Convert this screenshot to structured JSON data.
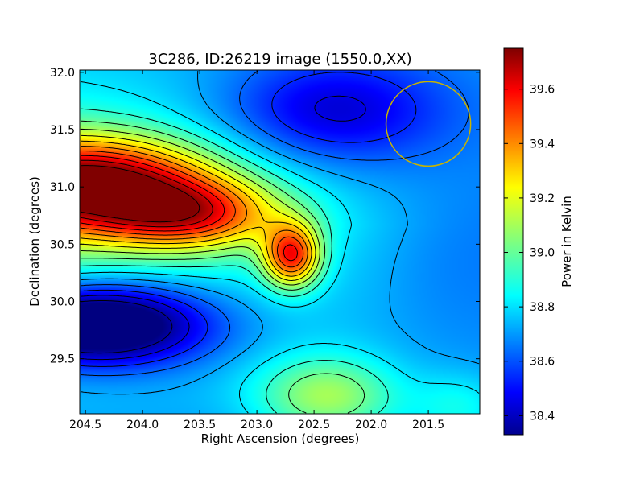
{
  "chart_data": {
    "type": "heatmap",
    "title": "3C286, ID:26219 image (1550.0,XX)",
    "xlabel": "Right Ascension (degrees)",
    "ylabel": "Declination (degrees)",
    "colorbar_label": "Power in Kelvin",
    "colormap": "jet",
    "xlim": [
      204.55,
      201.05
    ],
    "ylim": [
      29.02,
      32.02
    ],
    "x_axis_inverted": true,
    "x_ticks": [
      204.5,
      204.0,
      203.5,
      203.0,
      202.5,
      202.0,
      201.5
    ],
    "x_tick_labels": [
      "204.5",
      "204.0",
      "203.5",
      "203.0",
      "202.5",
      "202.0",
      "201.5"
    ],
    "y_ticks": [
      29.5,
      30.0,
      30.5,
      31.0,
      31.5,
      32.0
    ],
    "y_tick_labels": [
      "29.5",
      "30.0",
      "30.5",
      "31.0",
      "31.5",
      "32.0"
    ],
    "colorbar_range": [
      38.33,
      39.75
    ],
    "colorbar_ticks": [
      38.4,
      38.6,
      38.8,
      39.0,
      39.2,
      39.4,
      39.6
    ],
    "colorbar_tick_labels": [
      "38.4",
      "38.6",
      "38.8",
      "39.0",
      "39.2",
      "39.4",
      "39.6"
    ],
    "contours": "black",
    "features": [
      {
        "ra": 204.35,
        "dec": 30.95,
        "value": 39.74
      },
      {
        "ra": 202.75,
        "dec": 30.37,
        "value": 39.73
      },
      {
        "ra": 204.4,
        "dec": 29.9,
        "value": 38.34
      },
      {
        "ra": 202.45,
        "dec": 31.65,
        "value": 38.48
      }
    ],
    "beam_circle": {
      "ra": 201.5,
      "dec": 31.55,
      "radius_deg": 0.37,
      "color": "#c8b400"
    }
  }
}
